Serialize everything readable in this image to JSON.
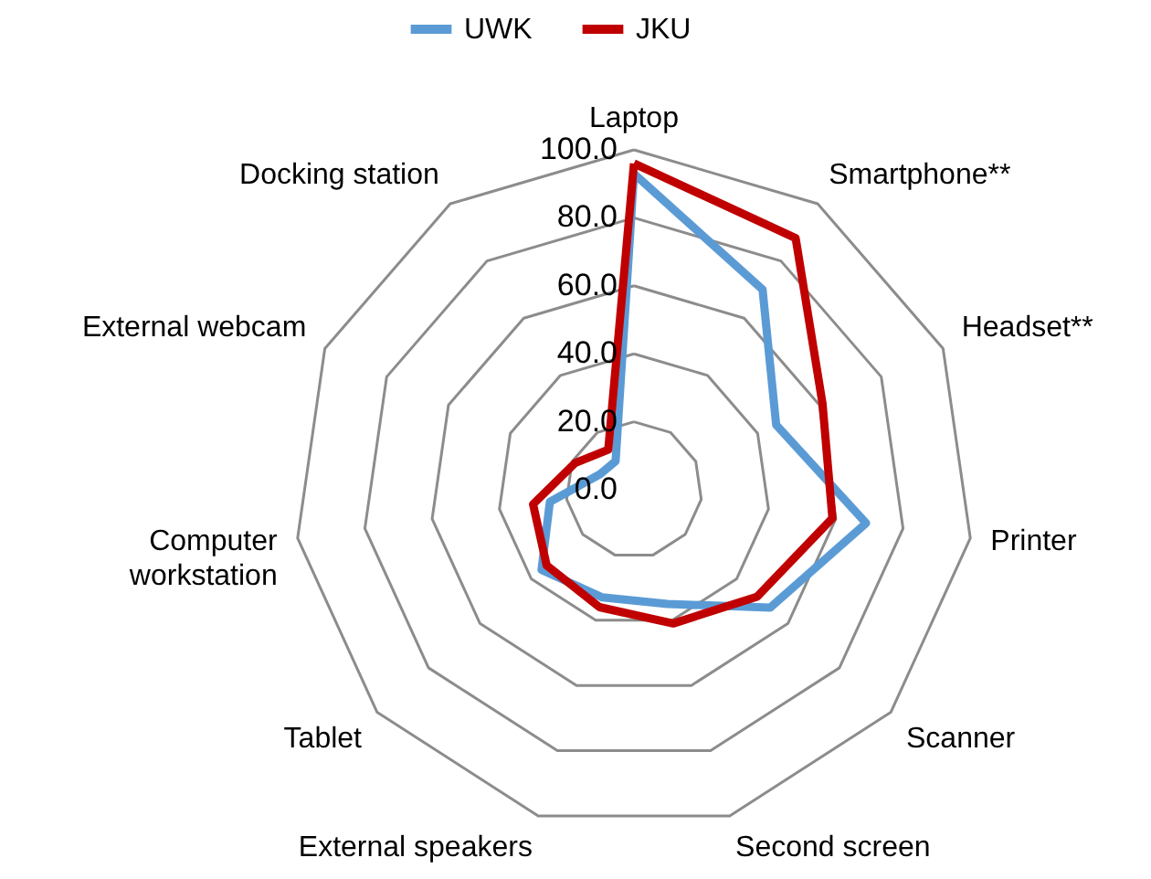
{
  "chart_data": {
    "type": "radar",
    "categories": [
      "Laptop",
      "Smartphone**",
      "Headset**",
      "Printer",
      "Scanner",
      "Second screen",
      "External speakers",
      "Tablet",
      "Computer workstation",
      "External webcam",
      "Docking station"
    ],
    "series": [
      {
        "name": "UWK",
        "color": "#5b9bd5",
        "values": [
          93,
          70,
          46,
          69,
          53,
          35,
          33,
          36,
          25,
          11,
          10
        ]
      },
      {
        "name": "JKU",
        "color": "#c00000",
        "values": [
          96,
          88,
          61,
          59,
          48,
          41,
          36,
          34,
          30,
          19,
          14
        ]
      }
    ],
    "ylim": [
      0,
      100
    ],
    "yticks": [
      {
        "value": 0,
        "label": "0.0"
      },
      {
        "value": 20,
        "label": "20.0"
      },
      {
        "value": 40,
        "label": "40.0"
      },
      {
        "value": 60,
        "label": "60.0"
      },
      {
        "value": 80,
        "label": "80.0"
      },
      {
        "value": 100,
        "label": "100.0"
      }
    ],
    "grid": true,
    "legend": "top"
  }
}
